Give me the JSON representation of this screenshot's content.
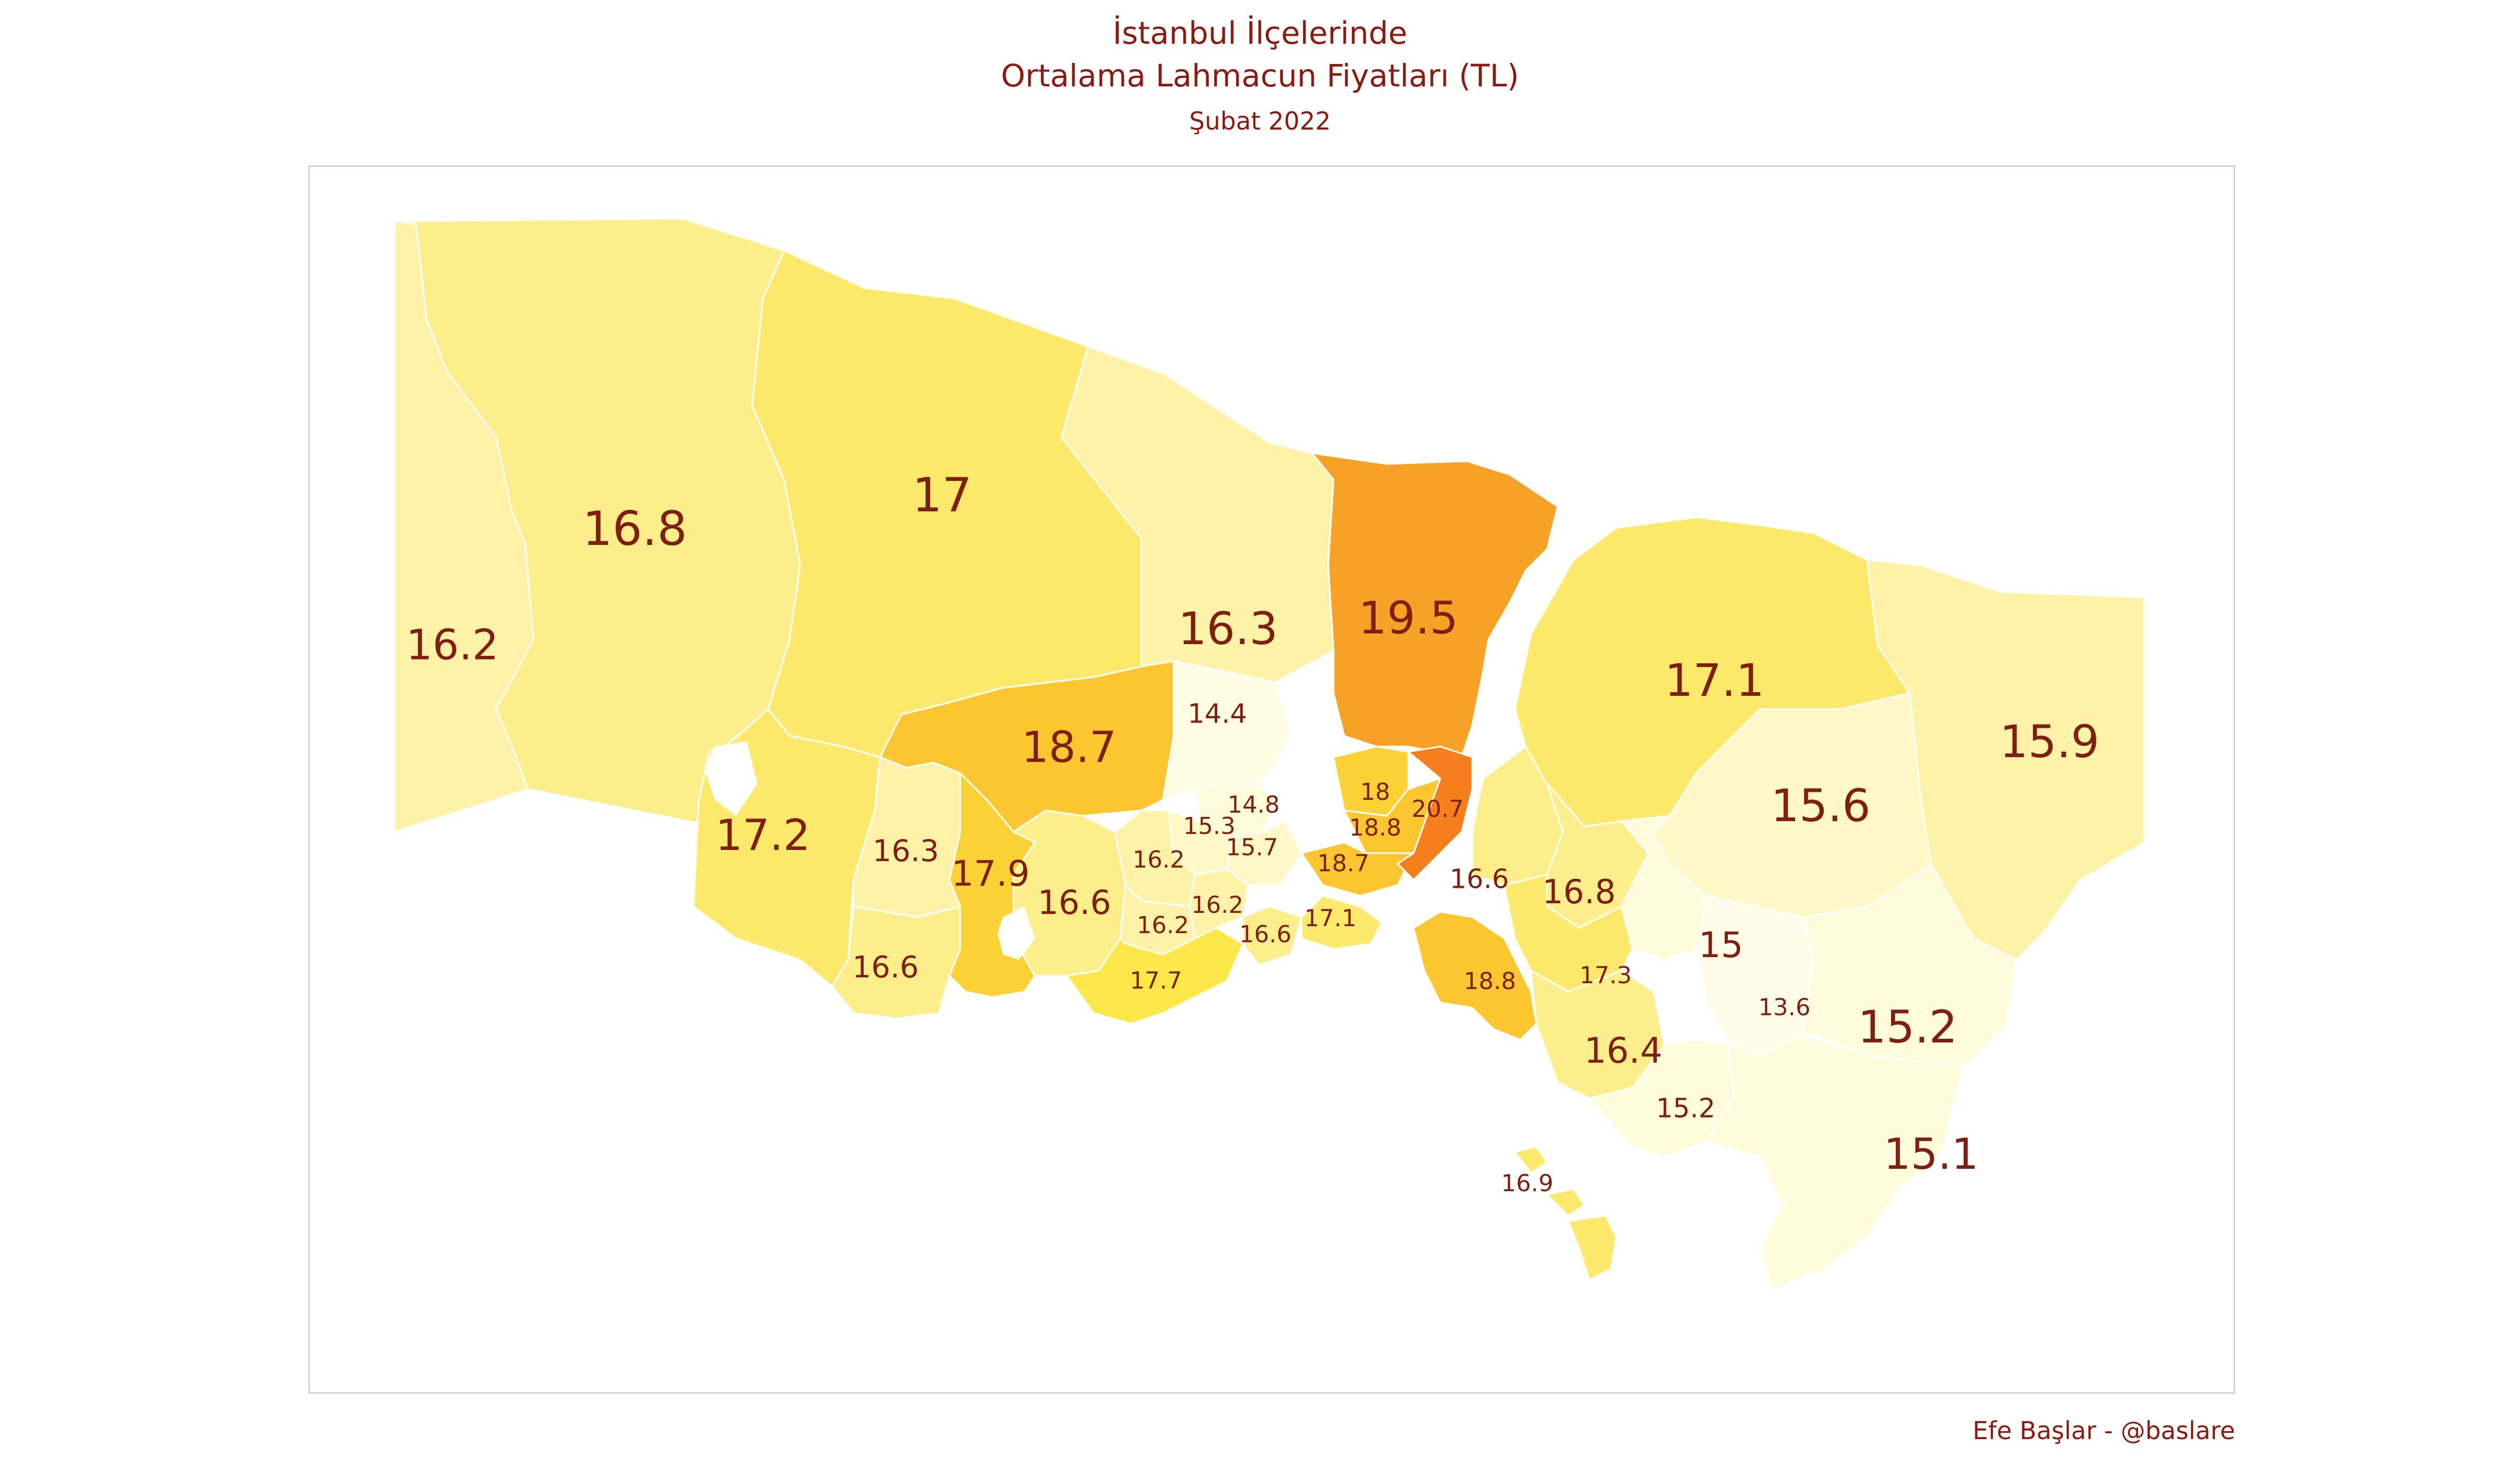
{
  "title_lines": [
    "İstanbul İlçelerinde",
    "Ortalama Lahmacun Fiyatları (TL)"
  ],
  "subtitle": "Şubat 2022",
  "caption": "Efe Başlar - @baslare",
  "colors": {
    "text": "#7f1f12",
    "border": "#d4d4d4",
    "scale": {
      "13.6": "#fffde8",
      "14.4": "#fffce4",
      "15.0": "#fffcdc",
      "15.6": "#fef8c6",
      "16.0": "#fef2a8",
      "16.6": "#fdee8c",
      "17.0": "#fde96c",
      "17.7": "#fde84a",
      "18.0": "#fbd236",
      "18.7": "#fbc630",
      "19.5": "#f5a226",
      "20.7": "#f47f1c"
    }
  },
  "districts": [
    {
      "id": "silivri",
      "value": 16.2
    },
    {
      "id": "catalca",
      "value": 16.8
    },
    {
      "id": "arnavutkoy",
      "value": 17
    },
    {
      "id": "eyupsultan",
      "value": 16.3
    },
    {
      "id": "sariyer",
      "value": 19.5
    },
    {
      "id": "beykoz",
      "value": 17.1
    },
    {
      "id": "sile",
      "value": 15.9
    },
    {
      "id": "buyukcekmece",
      "value": 17.2
    },
    {
      "id": "basaksehir",
      "value": 18.7
    },
    {
      "id": "gaziosmanpasa",
      "value": 14.4
    },
    {
      "id": "esenyurt",
      "value": 16.3
    },
    {
      "id": "beylikduzu",
      "value": 16.6
    },
    {
      "id": "avcilar",
      "value": 17.9
    },
    {
      "id": "kucukcekmece",
      "value": 16.6
    },
    {
      "id": "sultangazi",
      "value": 14.8
    },
    {
      "id": "bayrampasa",
      "value": 15.3
    },
    {
      "id": "kagithane",
      "value": 15.7
    },
    {
      "id": "esenler",
      "value": 16.2
    },
    {
      "id": "gungoren",
      "value": 16.2
    },
    {
      "id": "bahcelievler",
      "value": 16.2
    },
    {
      "id": "bakirkoy",
      "value": 17.7
    },
    {
      "id": "zeytinburnu",
      "value": 16.6
    },
    {
      "id": "fatih",
      "value": 17.1
    },
    {
      "id": "sisli",
      "value": 18
    },
    {
      "id": "besiktas",
      "value": 18.8
    },
    {
      "id": "beyoglu",
      "value": 18.7
    },
    {
      "id": "uskudar",
      "value": 20.7
    },
    {
      "id": "umraniye",
      "value": 16.6
    },
    {
      "id": "cekmekoy",
      "value": 16.8
    },
    {
      "id": "sancaktepe",
      "value": 15
    },
    {
      "id": "sultanbeyli",
      "value": 13.6
    },
    {
      "id": "atasehir",
      "value": 17.3
    },
    {
      "id": "kadikoy",
      "value": 18.8
    },
    {
      "id": "maltepe",
      "value": 16.4
    },
    {
      "id": "kartal",
      "value": 15.2
    },
    {
      "id": "pendik",
      "value": 15.1
    },
    {
      "id": "tuzla",
      "value": 15.2
    },
    {
      "id": "adalar",
      "value": 16.9
    },
    {
      "id": "sile-south",
      "value": 15.6
    }
  ],
  "labels": [
    "16.2",
    "16.8",
    "17",
    "16.3",
    "19.5",
    "17.1",
    "15.9",
    "17.2",
    "18.7",
    "14.4",
    "16.3",
    "16.6",
    "17.9",
    "16.6",
    "14.8",
    "15.3",
    "15.7",
    "16.2",
    "16.2",
    "16.2",
    "17.7",
    "16.6",
    "17.1",
    "18",
    "18.8",
    "18.7",
    "20.7",
    "16.6",
    "16.8",
    "15",
    "13.6",
    "17.3",
    "18.8",
    "16.4",
    "15.2",
    "15.1",
    "15.2",
    "16.9",
    "15.6"
  ]
}
